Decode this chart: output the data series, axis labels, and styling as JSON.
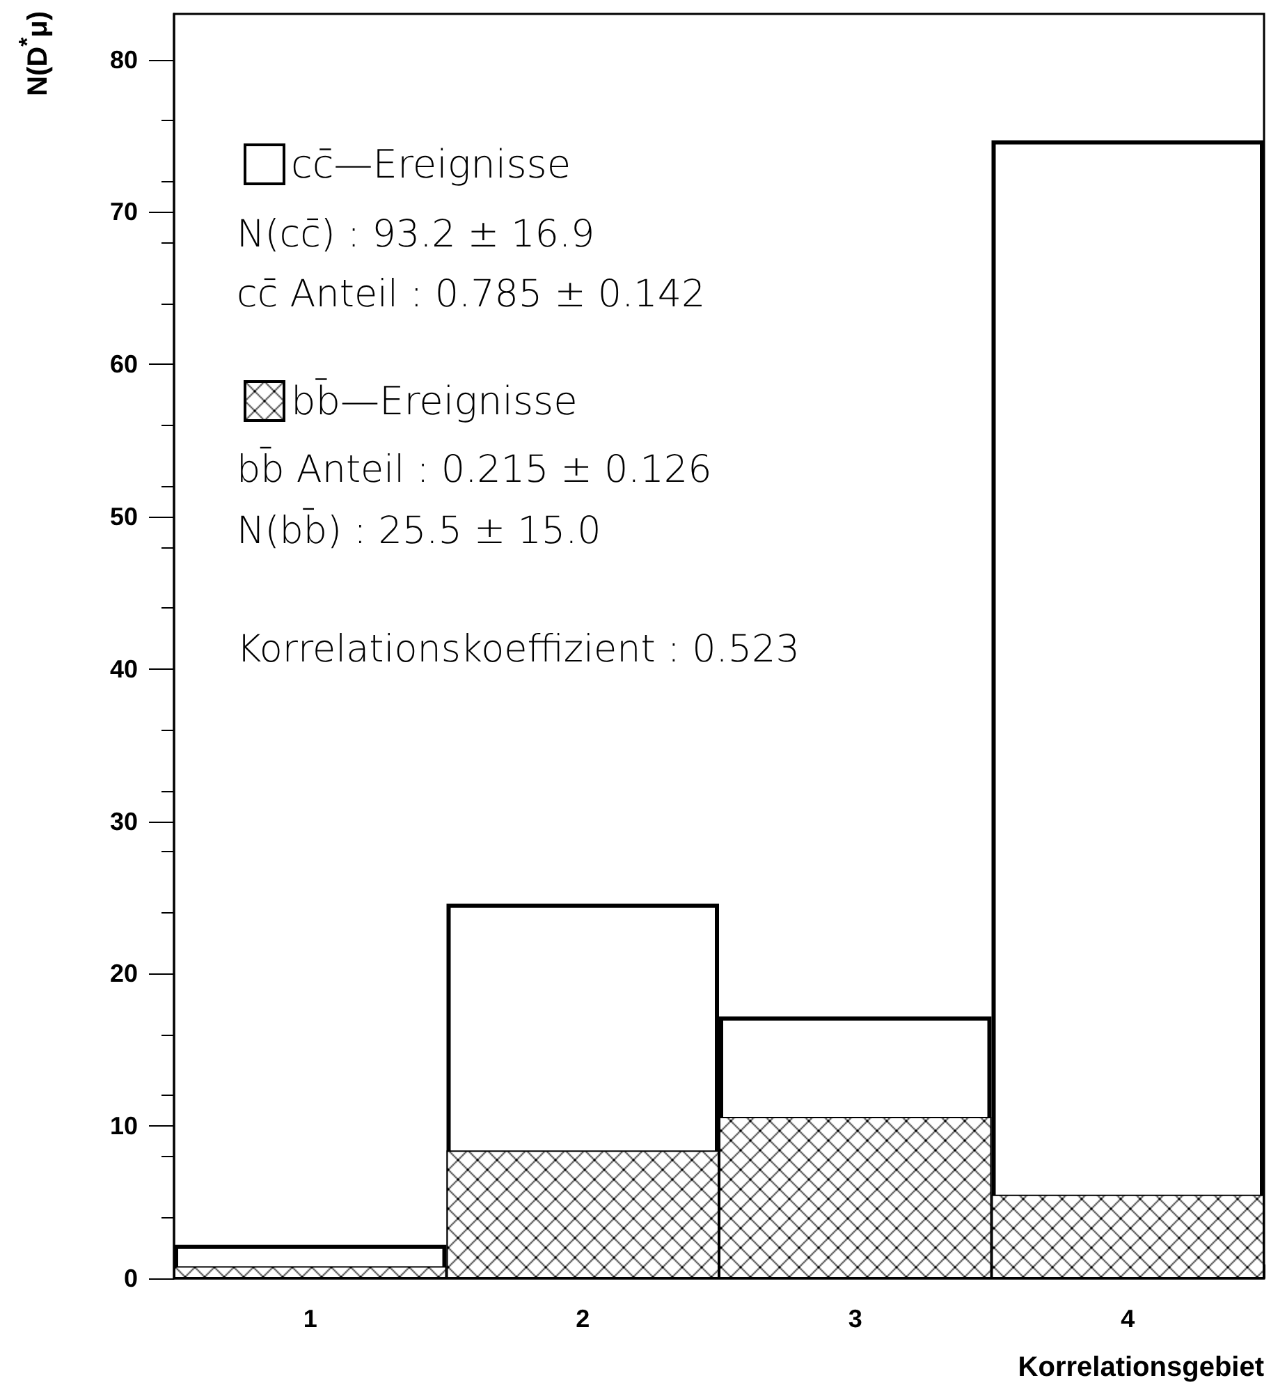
{
  "chart_data": {
    "type": "bar",
    "xlabel": "Korrelationsgebiet",
    "ylabel": "N(D$^{*}$μ)",
    "categories": [
      "1",
      "2",
      "3",
      "4"
    ],
    "series": [
      {
        "name": "cc̄—Ereignisse",
        "color": "#000000",
        "values": [
          2.2,
          24.6,
          17.2,
          74.7
        ]
      },
      {
        "name": "bb̄—Ereignisse",
        "color": "#000000",
        "values": [
          0.8,
          8.4,
          10.6,
          5.5
        ]
      }
    ],
    "ylim": [
      0,
      83
    ],
    "yticks": [
      0,
      10,
      20,
      30,
      40,
      50,
      60,
      70,
      80
    ],
    "legend": "top left",
    "annotations": [
      "N(cc̄) : 93.2 ± 16.9",
      "cc̄ Anteil : 0.785 ± 0.142",
      "bb̄ Anteil : 0.215 ± 0.126",
      "N(bb̄) : 25.5 ± 15.0",
      "Korrelationskoeffizient : 0.523"
    ]
  }
}
